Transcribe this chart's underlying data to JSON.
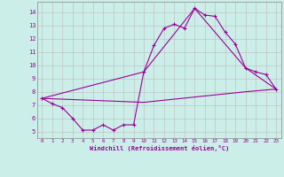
{
  "xlabel": "Windchill (Refroidissement éolien,°C)",
  "background_color": "#cceee8",
  "line_color": "#990099",
  "grid_color": "#bbbbbb",
  "xlim": [
    -0.5,
    23.5
  ],
  "ylim": [
    4.5,
    14.8
  ],
  "xticks": [
    0,
    1,
    2,
    3,
    4,
    5,
    6,
    7,
    8,
    9,
    10,
    11,
    12,
    13,
    14,
    15,
    16,
    17,
    18,
    19,
    20,
    21,
    22,
    23
  ],
  "yticks": [
    5,
    6,
    7,
    8,
    9,
    10,
    11,
    12,
    13,
    14
  ],
  "series1_x": [
    0,
    1,
    2,
    3,
    4,
    5,
    6,
    7,
    8,
    9,
    10,
    11,
    12,
    13,
    14,
    15,
    16,
    17,
    18,
    19,
    20,
    21,
    22,
    23
  ],
  "series1_y": [
    7.5,
    7.1,
    6.8,
    6.0,
    5.1,
    5.1,
    5.5,
    5.1,
    5.5,
    5.5,
    9.5,
    11.5,
    12.8,
    13.1,
    12.8,
    14.3,
    13.8,
    13.7,
    12.5,
    11.6,
    9.8,
    9.5,
    9.3,
    8.2
  ],
  "series2_x": [
    0,
    10,
    15,
    20,
    23
  ],
  "series2_y": [
    7.5,
    9.5,
    14.3,
    9.8,
    8.2
  ],
  "series3_x": [
    0,
    10,
    15,
    20,
    23
  ],
  "series3_y": [
    7.5,
    7.2,
    7.6,
    8.0,
    8.2
  ]
}
